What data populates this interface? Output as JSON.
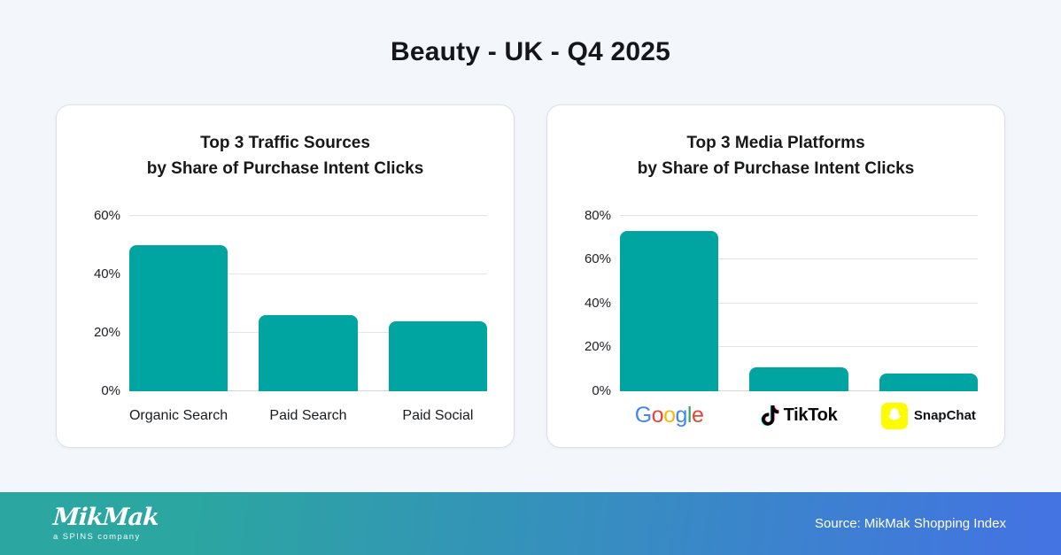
{
  "page": {
    "title": "Beauty - UK - Q4 2025",
    "background_color": "#f3f6fa"
  },
  "colors": {
    "bar_teal": "#00a4a0",
    "gridline": "#e2e4e7",
    "baseline": "#d4d7da",
    "text_dark": "#17181a",
    "card_border": "#dde1e6",
    "footer_gradient_start": "#2ba6a0",
    "footer_gradient_end": "#4374e1",
    "snapchat_yellow": "#FFFC00"
  },
  "chart_data": [
    {
      "type": "bar",
      "title_line1": "Top 3 Traffic Sources",
      "title_line2": "by Share of Purchase Intent Clicks",
      "categories": [
        "Organic Search",
        "Paid Search",
        "Paid Social"
      ],
      "values": [
        50,
        26,
        24
      ],
      "unit": "%",
      "ylim": [
        0,
        60
      ],
      "yticks": [
        0,
        20,
        40,
        60
      ],
      "grid": true,
      "legend": "none",
      "label_type": "text",
      "bar_color": "#00a4a0"
    },
    {
      "type": "bar",
      "title_line1": "Top 3 Media Platforms",
      "title_line2": "by Share of Purchase Intent Clicks",
      "categories": [
        "Google",
        "TikTok",
        "SnapChat"
      ],
      "values": [
        73,
        11,
        8
      ],
      "unit": "%",
      "ylim": [
        0,
        80
      ],
      "yticks": [
        0,
        20,
        40,
        60,
        80
      ],
      "grid": true,
      "legend": "none",
      "label_type": "logo",
      "bar_color": "#00a4a0"
    }
  ],
  "logos": {
    "google": {
      "letters": [
        {
          "ch": "G",
          "color": "#4285F4"
        },
        {
          "ch": "o",
          "color": "#EA4335"
        },
        {
          "ch": "o",
          "color": "#FBBC05"
        },
        {
          "ch": "g",
          "color": "#4285F4"
        },
        {
          "ch": "l",
          "color": "#34A853"
        },
        {
          "ch": "e",
          "color": "#EA4335"
        }
      ]
    },
    "tiktok": {
      "text": "TikTok",
      "icon_color": "#010101",
      "accent_cyan": "#25F4EE",
      "accent_red": "#FE2C55"
    },
    "snapchat": {
      "text": "SnapChat",
      "badge_color": "#FFFC00",
      "ghost_color": "#ffffff"
    }
  },
  "footer": {
    "logo_text": "MikMak",
    "logo_subtext": "a SPINS company",
    "source": "Source: MikMak Shopping Index"
  }
}
